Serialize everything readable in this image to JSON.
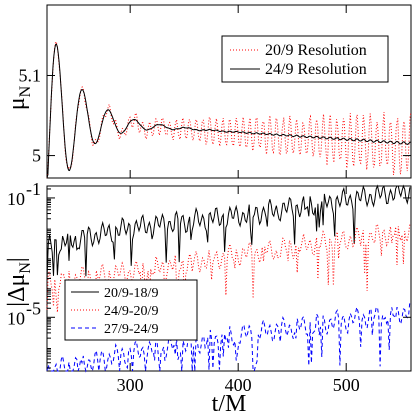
{
  "chart_data": [
    {
      "type": "line",
      "ylabel": "μ_N",
      "xlim": [
        223,
        560
      ],
      "ylim": [
        4.972,
        5.188
      ],
      "x_ticks": [
        300,
        400,
        500
      ],
      "y_ticks": [
        {
          "value": 5.0,
          "label": "5"
        },
        {
          "value": 5.1,
          "label": "5.1"
        }
      ],
      "legend_position": "top-right",
      "series": [
        {
          "name": "20/9 Resolution",
          "color": "#ff0000",
          "dash": "dotted",
          "model": {
            "kind": "oscillating-decay",
            "base_start": 5.045,
            "base_end": 5.012,
            "ring_amp": 0.13,
            "ring_decay": 28,
            "ring_period": 24,
            "noise_amp_start": 0.004,
            "noise_amp_end": 0.045,
            "noise_period": 6.2
          }
        },
        {
          "name": "24/9 Resolution",
          "color": "#000000",
          "dash": "solid",
          "model": {
            "kind": "oscillating-decay",
            "base_start": 5.045,
            "base_end": 5.015,
            "ring_amp": 0.13,
            "ring_decay": 28,
            "ring_period": 24,
            "noise_amp_start": 0.0,
            "noise_amp_end": 0.002,
            "noise_period": 6.2
          }
        }
      ]
    },
    {
      "type": "line",
      "ylabel": "|Δμ_N|",
      "xlabel": "t/M",
      "xlim": [
        223,
        560
      ],
      "yscale": "log",
      "ylim_log10": [
        -6.8,
        -0.6
      ],
      "x_ticks": [
        {
          "value": 300,
          "label": "300"
        },
        {
          "value": 400,
          "label": "400"
        },
        {
          "value": 500,
          "label": "500"
        }
      ],
      "y_ticks": [
        {
          "log10": -1,
          "label": "10",
          "exp": "-1"
        },
        {
          "log10": -5,
          "label": "10",
          "exp": "-5"
        }
      ],
      "legend_position": "lower-left",
      "series": [
        {
          "name": "20/9-18/9",
          "color": "#000000",
          "dash": "solid",
          "trend_log10": [
            [
              223,
              -2.6
            ],
            [
              300,
              -2.0
            ],
            [
              400,
              -1.6
            ],
            [
              560,
              -0.75
            ]
          ],
          "dip_depth": 1.3
        },
        {
          "name": "24/9-20/9",
          "color": "#ff0000",
          "dash": "dotted",
          "trend_log10": [
            [
              223,
              -3.8
            ],
            [
              300,
              -3.5
            ],
            [
              400,
              -2.9
            ],
            [
              560,
              -2.1
            ]
          ],
          "dip_depth": 1.6
        },
        {
          "name": "27/9-24/9",
          "color": "#0000ff",
          "dash": "dashed",
          "trend_log10": [
            [
              223,
              -6.8
            ],
            [
              300,
              -6.2
            ],
            [
              400,
              -5.6
            ],
            [
              560,
              -4.8
            ]
          ],
          "dip_depth": 1.4
        }
      ]
    }
  ]
}
